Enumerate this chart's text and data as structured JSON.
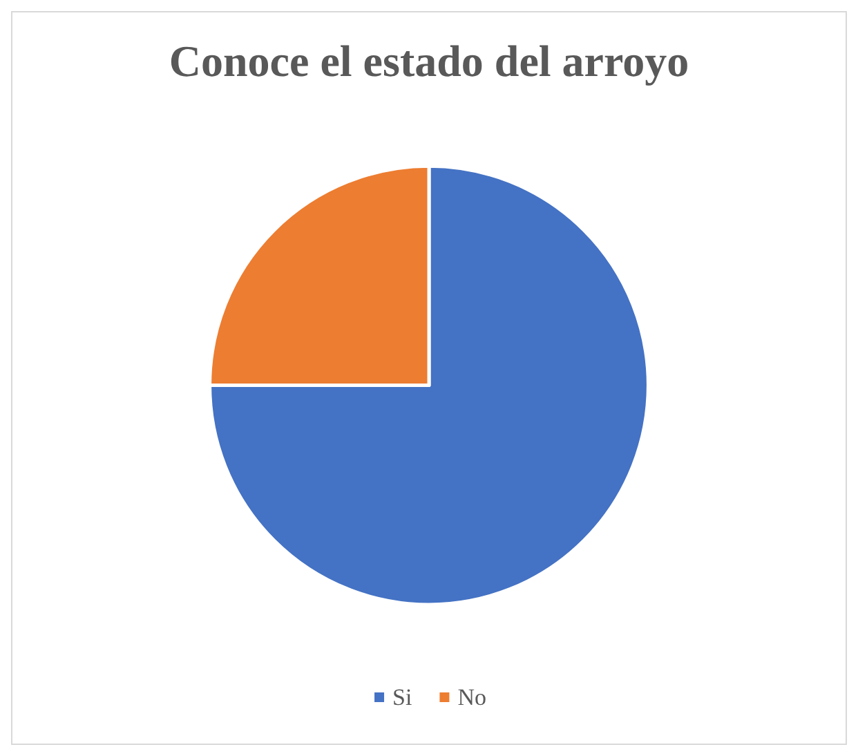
{
  "chart_data": {
    "type": "pie",
    "title": "Conoce el estado del arroyo",
    "categories": [
      "Si",
      "No"
    ],
    "values": [
      75,
      25
    ],
    "colors": [
      "#4472c4",
      "#ed7d31"
    ],
    "legend": "bottom"
  }
}
